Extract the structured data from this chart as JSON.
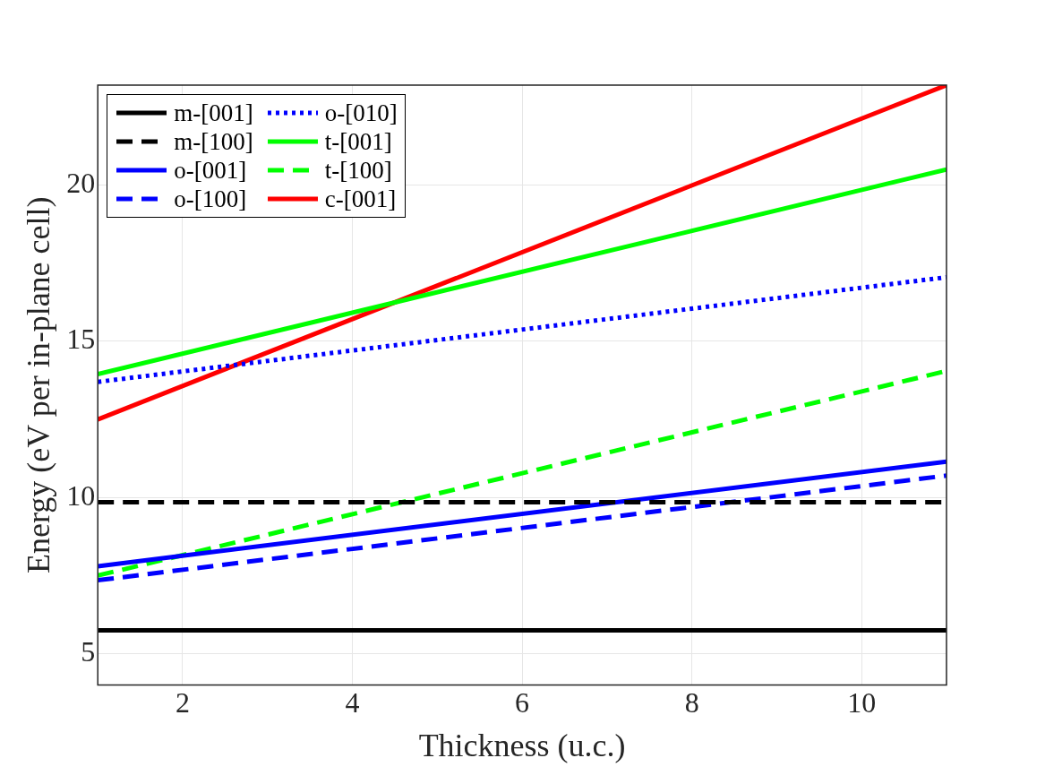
{
  "chart_data": {
    "type": "line",
    "xlabel": "Thickness (u.c.)",
    "ylabel": "Energy (eV per in-plane cell)",
    "x": [
      1,
      11
    ],
    "xlim": [
      1,
      11
    ],
    "xticks": [
      2,
      4,
      6,
      8,
      10
    ],
    "ylim": [
      4,
      23.2
    ],
    "yticks": [
      5,
      10,
      15,
      20
    ],
    "grid": true,
    "legend": "top left",
    "marker": "none",
    "series": [
      {
        "name": "m-[001]",
        "color": "#000000",
        "line_style": "solid",
        "values": [
          5.75,
          5.75
        ]
      },
      {
        "name": "m-[100]",
        "color": "#000000",
        "line_style": "dashed",
        "values": [
          9.85,
          9.85
        ]
      },
      {
        "name": "o-[001]",
        "color": "#0000ff",
        "line_style": "solid",
        "values": [
          7.8,
          11.15
        ]
      },
      {
        "name": "o-[100]",
        "color": "#0000ff",
        "line_style": "dashed",
        "values": [
          7.35,
          10.7
        ]
      },
      {
        "name": "o-[010]",
        "color": "#0000ff",
        "line_style": "dotted",
        "values": [
          13.7,
          17.05
        ]
      },
      {
        "name": "t-[001]",
        "color": "#00ff00",
        "line_style": "solid",
        "values": [
          13.95,
          20.5
        ]
      },
      {
        "name": "t-[100]",
        "color": "#00ff00",
        "line_style": "dashed",
        "values": [
          7.5,
          14.05
        ]
      },
      {
        "name": "c-[001]",
        "color": "#ff0000",
        "line_style": "solid",
        "values": [
          12.5,
          23.2
        ]
      }
    ]
  }
}
